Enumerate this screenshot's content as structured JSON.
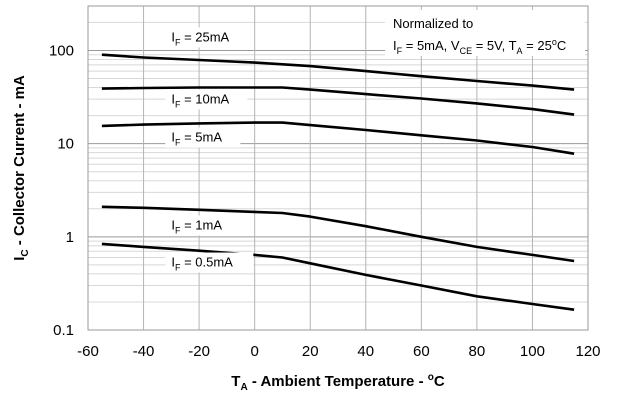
{
  "chart_data": {
    "type": "line",
    "x_axis": {
      "label_main": "T",
      "label_sub": "A",
      "label_rest": " - Ambient Temperature - ",
      "label_sup": "o",
      "label_end": "C",
      "range": [
        -60,
        120
      ],
      "ticks": [
        -60,
        -40,
        -20,
        0,
        20,
        40,
        60,
        80,
        100,
        120
      ],
      "tick_labels": [
        "-60",
        "-40",
        "-20",
        "0",
        "20",
        "40",
        "60",
        "80",
        "100",
        "120"
      ]
    },
    "y_axis": {
      "label_main": "I",
      "label_sub": "C",
      "label_rest": " - Collector Current - mA",
      "scale": "log",
      "range": [
        0.1,
        300
      ],
      "ticks": [
        0.1,
        1,
        10,
        100
      ],
      "tick_labels": [
        "0.1",
        "1",
        "10",
        "100"
      ]
    },
    "grid": true,
    "annotation": {
      "line1": "Normalized to",
      "line2_parts": [
        "I",
        "F",
        " = 5mA, V",
        "CE",
        " = 5V, T",
        "A",
        " = 25",
        "o",
        "C"
      ]
    },
    "series": [
      {
        "name": "I_F = 25mA",
        "label_main": "I",
        "label_sub": "F",
        "label_rest": " = 25mA",
        "x": [
          -55,
          -40,
          -20,
          0,
          20,
          40,
          60,
          80,
          100,
          115
        ],
        "y": [
          90,
          84,
          79,
          74,
          68,
          60,
          53,
          47,
          42,
          38
        ]
      },
      {
        "name": "I_F = 10mA",
        "label_main": "I",
        "label_sub": "F",
        "label_rest": " = 10mA",
        "x": [
          -55,
          -40,
          -20,
          0,
          10,
          20,
          40,
          60,
          80,
          100,
          115
        ],
        "y": [
          39,
          39.5,
          40,
          40,
          40,
          38,
          34,
          30.5,
          27,
          23.5,
          20.5
        ]
      },
      {
        "name": "I_F = 5mA",
        "label_main": "I",
        "label_sub": "F",
        "label_rest": " = 5mA",
        "x": [
          -55,
          -40,
          -20,
          0,
          10,
          20,
          40,
          60,
          80,
          100,
          115
        ],
        "y": [
          15.5,
          16,
          16.5,
          16.8,
          16.8,
          15.8,
          14,
          12.3,
          10.8,
          9.2,
          7.8
        ]
      },
      {
        "name": "I_F = 1mA",
        "label_main": "I",
        "label_sub": "F",
        "label_rest": " = 1mA",
        "x": [
          -55,
          -40,
          -20,
          0,
          10,
          20,
          40,
          60,
          80,
          100,
          115
        ],
        "y": [
          2.1,
          2.05,
          1.95,
          1.85,
          1.8,
          1.65,
          1.3,
          1.0,
          0.78,
          0.64,
          0.55
        ]
      },
      {
        "name": "I_F = 0.5mA",
        "label_main": "I",
        "label_sub": "F",
        "label_rest": " = 0.5mA",
        "x": [
          -55,
          -40,
          -20,
          0,
          10,
          20,
          40,
          60,
          80,
          100,
          115
        ],
        "y": [
          0.84,
          0.78,
          0.71,
          0.64,
          0.6,
          0.52,
          0.39,
          0.3,
          0.23,
          0.19,
          0.165
        ]
      }
    ]
  }
}
